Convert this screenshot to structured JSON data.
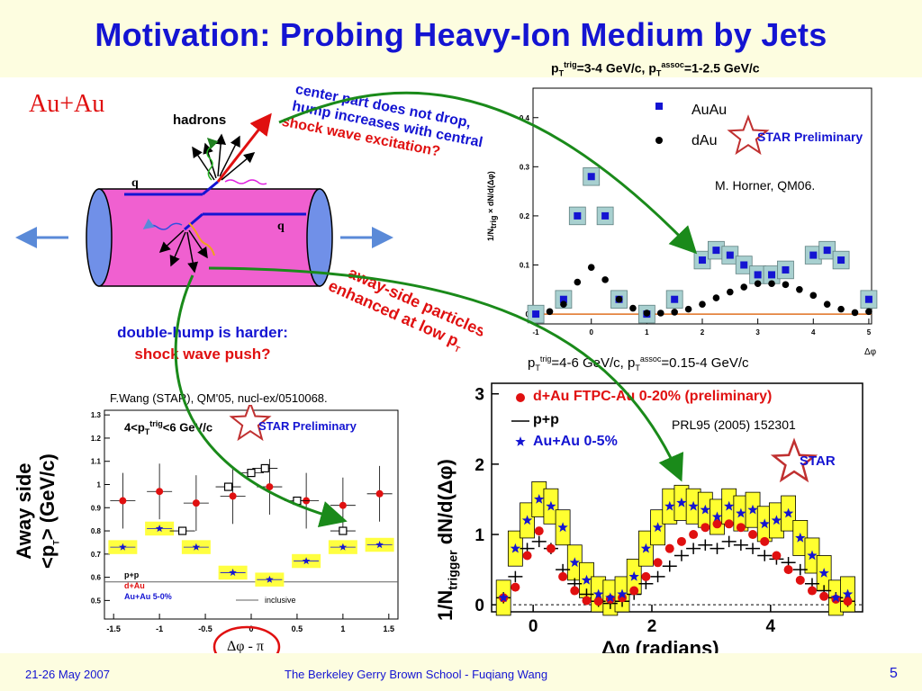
{
  "slide": {
    "title": "Motivation: Probing Heavy-Ion Medium by Jets",
    "page_number": "5",
    "footer_date": "21-26 May 2007",
    "footer_text": "The Berkeley Gerry Brown School - Fuqiang Wang"
  },
  "diagram": {
    "system_label": "Au+Au",
    "hadrons_label": "hadrons",
    "quark_label_top": "q",
    "quark_label_bottom": "q"
  },
  "annotations": {
    "center_text_1": "center part does not drop,",
    "center_text_2": "hump increases with centrality.",
    "center_text_3": "shock wave excitation?",
    "away_side_text_1": "away-side particles",
    "away_side_text_2": "enhanced at low p",
    "away_side_sub": "T",
    "double_hump_1": "double-hump is harder:",
    "double_hump_2": "shock wave push?"
  },
  "plot_top": {
    "header_pre": "p",
    "header_sub1": "T",
    "header_sup1": "trig",
    "header_mid": "=3-4 GeV/c, p",
    "header_sub2": "T",
    "header_sup2": "assoc",
    "header_post": "=1-2.5 GeV/c",
    "legend_auau": "AuAu",
    "legend_dau": "dAu",
    "star_label": "STAR Preliminary",
    "credit": "M. Horner, QM06.",
    "ylabel_frac_num": "1",
    "ylabel_frac_den": "N",
    "ylabel_frac_den_sub": "trig",
    "ylabel_times": "×",
    "ylabel_dn": "dN",
    "ylabel_dphi": "d(Δφ)",
    "xlabel": "Δφ",
    "xticks": [
      "-1",
      "0",
      "1",
      "2",
      "3",
      "4",
      "5"
    ],
    "yticks": [
      "0",
      "0.1",
      "0.2",
      "0.3",
      "0.4"
    ]
  },
  "plot_left": {
    "credit": "F.Wang (STAR), QM'05, nucl-ex/0510068.",
    "range_pre": "4<p",
    "range_sub": "T",
    "range_sup": "trig",
    "range_post": "<6 GeV/c",
    "star_label": "STAR Preliminary",
    "legend_pp": "p+p",
    "legend_dau": "d+Au",
    "legend_auau": "Au+Au 5-0%",
    "legend_inclusive": "inclusive",
    "ylabel_1": "Away side",
    "ylabel_2": "<p",
    "ylabel_2_sub": "T",
    "ylabel_2_post": "> (GeV/c)",
    "xlabel": "Δφ - π",
    "yticks": [
      "0.5",
      "0.6",
      "0.7",
      "0.8",
      "0.9",
      "1",
      "1.1",
      "1.2",
      "1.3"
    ],
    "xticks": [
      "-1.5",
      "-1",
      "-0.5",
      "0",
      "0.5",
      "1",
      "1.5"
    ]
  },
  "plot_right": {
    "header_pre": "p",
    "header_sub1": "T",
    "header_sup1": "trig",
    "header_mid": "=4-6 GeV/c, p",
    "header_sub2": "T",
    "header_sup2": "assoc",
    "header_post": "=0.15-4 GeV/c",
    "legend_dau": "d+Au FTPC-Au 0-20% (preliminary)",
    "legend_pp": "p+p",
    "legend_auau": "Au+Au 0-5%",
    "credit": "PRL95 (2005) 152301",
    "star_label": "STAR",
    "ylabel_pre": "1/N",
    "ylabel_sub": "trigger",
    "ylabel_post": " dN/d(Δφ)",
    "xlabel": "Δφ (radians)",
    "yticks": [
      "0",
      "1",
      "2",
      "3"
    ],
    "xticks": [
      "0",
      "2",
      "4"
    ]
  },
  "chart_data": [
    {
      "type": "scatter",
      "title": "",
      "xlabel": "Δφ",
      "ylabel": "1/Ntrig × dN/d(Δφ)",
      "xlim": [
        -1.05,
        5.05
      ],
      "ylim": [
        -0.02,
        0.46
      ],
      "series": [
        {
          "name": "AuAu",
          "x": [
            -1.0,
            -0.5,
            -0.25,
            0.0,
            0.25,
            0.5,
            1.0,
            1.5,
            2.0,
            2.25,
            2.5,
            2.75,
            3.0,
            3.25,
            3.5,
            4.0,
            4.25,
            4.5,
            5.0
          ],
          "y": [
            0.0,
            0.03,
            0.2,
            0.28,
            0.2,
            0.03,
            0.0,
            0.03,
            0.11,
            0.13,
            0.12,
            0.1,
            0.08,
            0.08,
            0.09,
            0.12,
            0.13,
            0.11,
            0.03
          ]
        },
        {
          "name": "dAu",
          "x": [
            -0.75,
            -0.5,
            -0.25,
            0.0,
            0.25,
            0.5,
            0.75,
            1.0,
            1.25,
            1.5,
            1.75,
            2.0,
            2.25,
            2.5,
            2.75,
            3.0,
            3.25,
            3.5,
            3.75,
            4.0,
            4.25,
            4.5,
            4.75,
            5.0
          ],
          "y": [
            0.005,
            0.02,
            0.065,
            0.095,
            0.07,
            0.03,
            0.012,
            0.002,
            0.002,
            0.004,
            0.01,
            0.02,
            0.033,
            0.045,
            0.055,
            0.062,
            0.062,
            0.06,
            0.05,
            0.038,
            0.02,
            0.01,
            0.003,
            0.005
          ]
        }
      ]
    },
    {
      "type": "scatter",
      "title": "",
      "xlabel": "Δφ - π",
      "ylabel": "Away side <pT> (GeV/c)",
      "xlim": [
        -1.6,
        1.6
      ],
      "ylim": [
        0.42,
        1.32
      ],
      "series": [
        {
          "name": "p+p",
          "x": [
            -0.75,
            -0.25,
            0.0,
            0.15,
            0.5,
            1.0
          ],
          "y": [
            0.8,
            0.99,
            1.05,
            1.07,
            0.93,
            0.8
          ]
        },
        {
          "name": "d+Au",
          "x": [
            -1.4,
            -1.0,
            -0.6,
            -0.2,
            0.2,
            0.6,
            1.0,
            1.4
          ],
          "y": [
            0.93,
            0.97,
            0.92,
            0.95,
            0.99,
            0.93,
            0.91,
            0.96
          ]
        },
        {
          "name": "Au+Au 5-0%",
          "x": [
            -1.4,
            -1.0,
            -0.6,
            -0.2,
            0.2,
            0.6,
            1.0,
            1.4
          ],
          "y": [
            0.73,
            0.81,
            0.73,
            0.62,
            0.59,
            0.67,
            0.73,
            0.74
          ]
        }
      ]
    },
    {
      "type": "scatter",
      "title": "",
      "xlabel": "Δφ (radians)",
      "ylabel": "1/Ntrigger dN/d(Δφ)",
      "xlim": [
        -0.7,
        5.55
      ],
      "ylim": [
        -0.1,
        3.15
      ],
      "series": [
        {
          "name": "d+Au FTPC-Au 0-20% (preliminary)",
          "x": [
            -0.5,
            -0.3,
            -0.1,
            0.1,
            0.3,
            0.5,
            0.7,
            0.9,
            1.1,
            1.3,
            1.5,
            1.7,
            1.9,
            2.1,
            2.3,
            2.5,
            2.7,
            2.9,
            3.1,
            3.3,
            3.5,
            3.7,
            3.9,
            4.1,
            4.3,
            4.5,
            4.7,
            4.9,
            5.1,
            5.3
          ],
          "y": [
            0.1,
            0.25,
            0.7,
            1.05,
            0.8,
            0.4,
            0.2,
            0.06,
            0.05,
            0.08,
            0.1,
            0.2,
            0.4,
            0.6,
            0.8,
            0.9,
            1.0,
            1.1,
            1.15,
            1.15,
            1.1,
            1.0,
            0.9,
            0.7,
            0.5,
            0.35,
            0.2,
            0.12,
            0.08,
            0.05
          ]
        },
        {
          "name": "p+p",
          "x": [
            -0.5,
            -0.3,
            -0.1,
            0.1,
            0.3,
            0.5,
            0.7,
            0.9,
            1.1,
            1.3,
            1.5,
            1.7,
            1.9,
            2.1,
            2.3,
            2.5,
            2.7,
            2.9,
            3.1,
            3.3,
            3.5,
            3.7,
            3.9,
            4.1,
            4.3,
            4.5,
            4.7,
            4.9,
            5.1,
            5.3
          ],
          "y": [
            0.1,
            0.4,
            0.8,
            0.9,
            0.8,
            0.5,
            0.3,
            0.15,
            0.05,
            0.02,
            0.05,
            0.15,
            0.3,
            0.4,
            0.55,
            0.7,
            0.8,
            0.85,
            0.8,
            0.9,
            0.85,
            0.8,
            0.7,
            0.65,
            0.6,
            0.5,
            0.3,
            0.2,
            0.1,
            0.05
          ]
        },
        {
          "name": "Au+Au 0-5%",
          "x": [
            -0.5,
            -0.3,
            -0.1,
            0.1,
            0.3,
            0.5,
            0.7,
            0.9,
            1.1,
            1.3,
            1.5,
            1.7,
            1.9,
            2.1,
            2.3,
            2.5,
            2.7,
            2.9,
            3.1,
            3.3,
            3.5,
            3.7,
            3.9,
            4.1,
            4.3,
            4.5,
            4.7,
            4.9,
            5.1,
            5.3
          ],
          "y": [
            0.1,
            0.8,
            1.2,
            1.5,
            1.4,
            1.1,
            0.6,
            0.35,
            0.15,
            0.1,
            0.15,
            0.4,
            0.8,
            1.1,
            1.4,
            1.45,
            1.4,
            1.35,
            1.25,
            1.4,
            1.3,
            1.35,
            1.15,
            1.2,
            1.3,
            0.95,
            0.7,
            0.45,
            0.1,
            0.15
          ]
        }
      ]
    }
  ]
}
